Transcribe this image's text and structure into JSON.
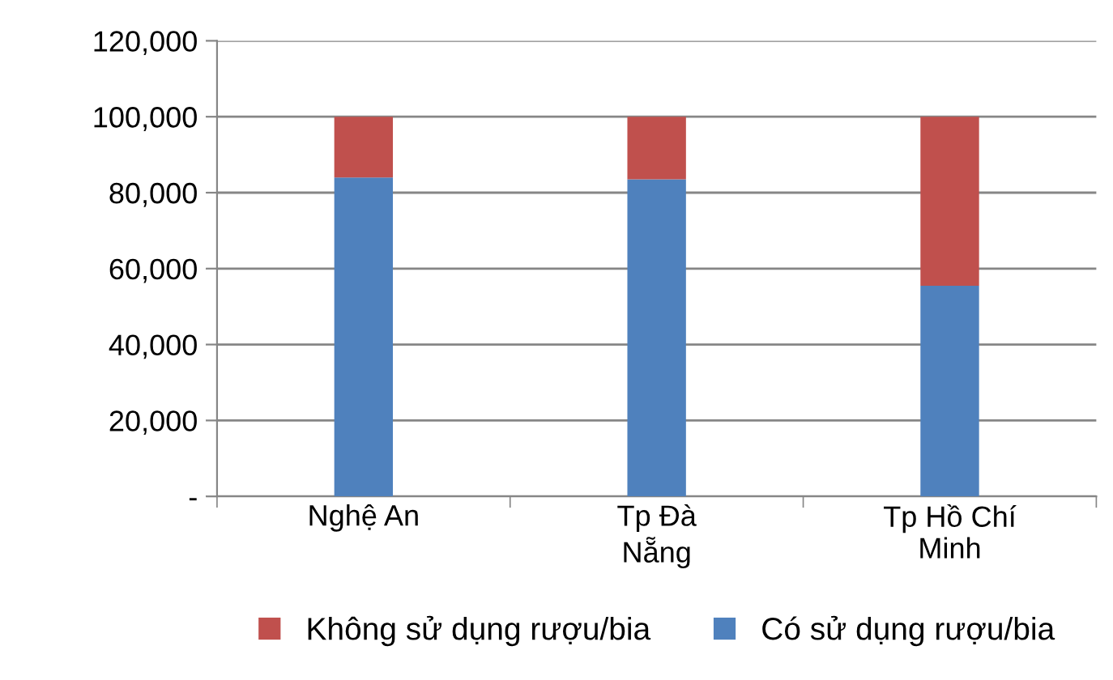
{
  "chart_data": {
    "type": "bar",
    "stacked": true,
    "categories": [
      "Nghệ An",
      "Tp Đà\nNẵng",
      "Tp Hồ Chí\nMinh"
    ],
    "series": [
      {
        "name": "Có sử dụng rượu/bia",
        "color": "#4f81bd",
        "values": [
          84000,
          83500,
          55500
        ]
      },
      {
        "name": "Không sử dụng rượu/bia",
        "color": "#c0504d",
        "values": [
          16000,
          16500,
          44500
        ]
      }
    ],
    "ylim": [
      0,
      120000
    ],
    "yticks": [
      {
        "value": 0,
        "label": "-"
      },
      {
        "value": 20000,
        "label": "20,000"
      },
      {
        "value": 40000,
        "label": "40,000"
      },
      {
        "value": 60000,
        "label": "60,000"
      },
      {
        "value": 80000,
        "label": "80,000"
      },
      {
        "value": 100000,
        "label": "100,000"
      },
      {
        "value": 120000,
        "label": "120,000"
      }
    ],
    "grid": "y",
    "legend": "bottom"
  }
}
